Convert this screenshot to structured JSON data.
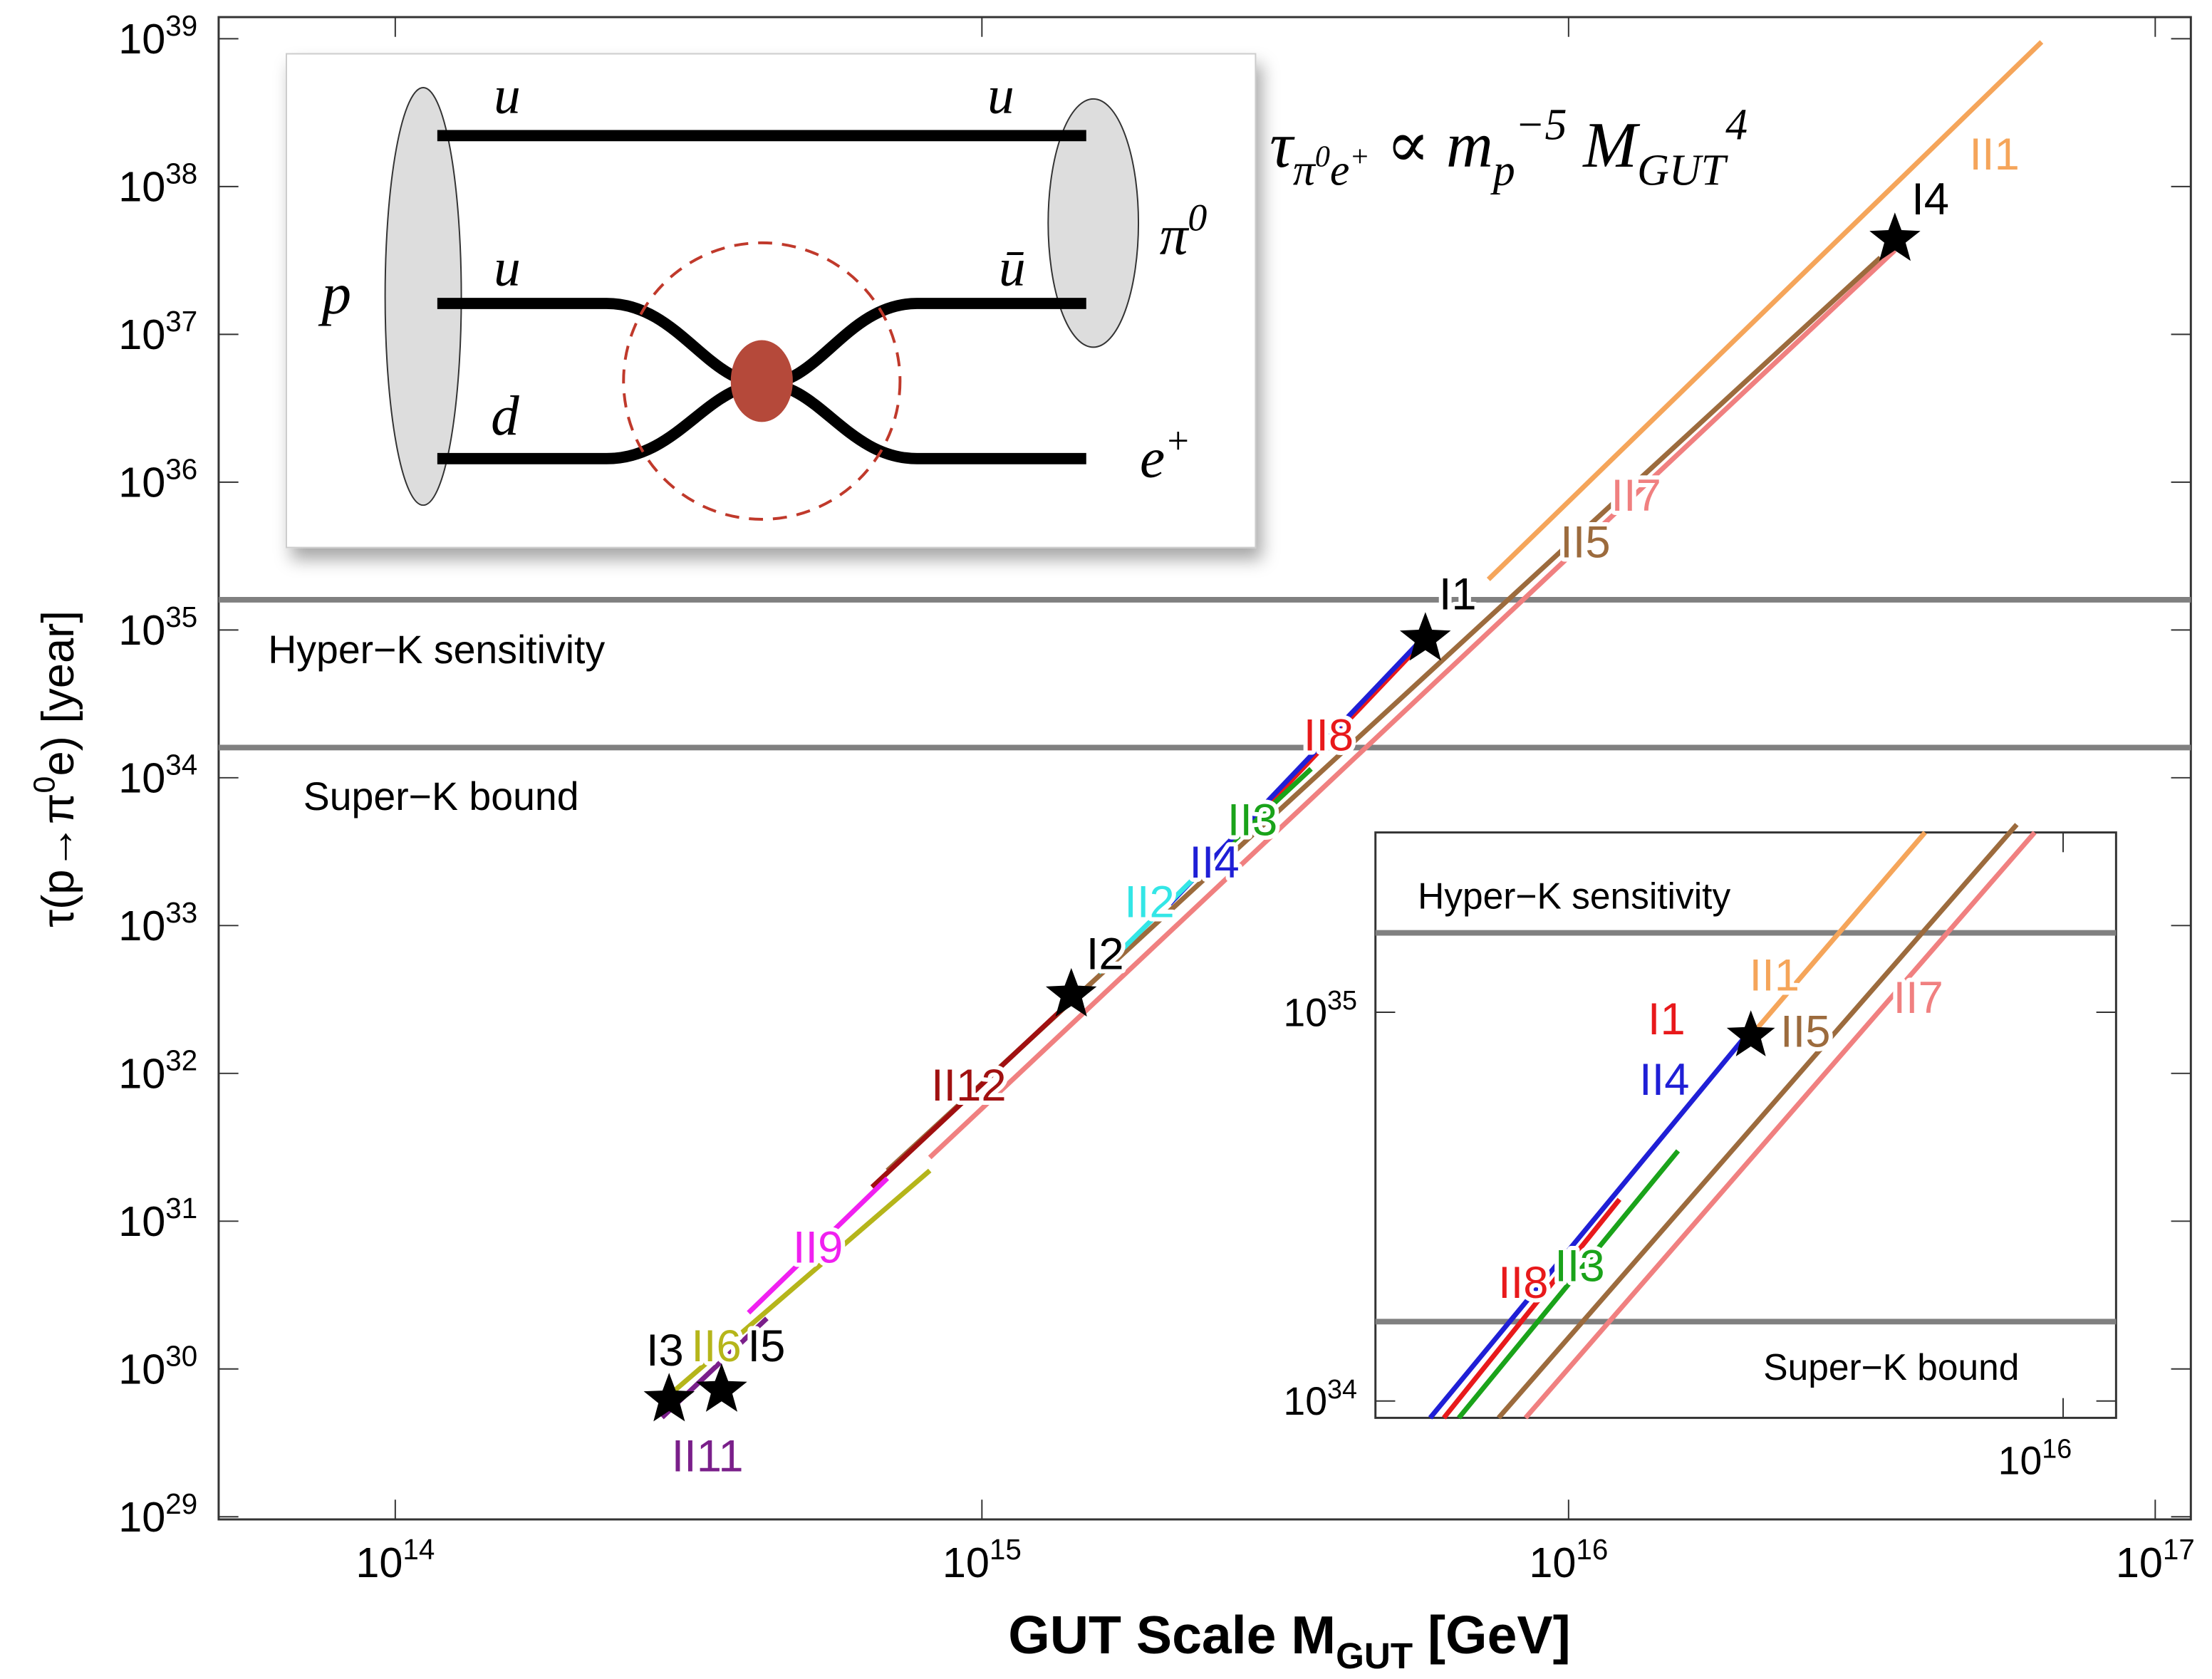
{
  "chart_data": [
    {
      "type": "line",
      "x_label": "GUT Scale M_{GUT} [GeV]",
      "y_label": "τ(p→π^0e) [year]",
      "log_x": true,
      "log_y": true,
      "xlim": [
        50000000000000.0,
        1.15e+17
      ],
      "ylim": [
        9.6e+28,
        1.4e+39
      ],
      "xticks": [
        {
          "value": 100000000000000.0,
          "label": "10^{14}"
        },
        {
          "value": 1000000000000000.0,
          "label": "10^{15}"
        },
        {
          "value": 1e+16,
          "label": "10^{16}"
        },
        {
          "value": 1e+17,
          "label": "10^{17}"
        }
      ],
      "yticks": [
        {
          "value": 1e+29,
          "label": "10^{29}"
        },
        {
          "value": 1e+30,
          "label": "10^{30}"
        },
        {
          "value": 1e+31,
          "label": "10^{31}"
        },
        {
          "value": 1e+32,
          "label": "10^{32}"
        },
        {
          "value": 1e+33,
          "label": "10^{33}"
        },
        {
          "value": 1e+34,
          "label": "10^{34}"
        },
        {
          "value": 1e+35,
          "label": "10^{35}"
        },
        {
          "value": 1e+36,
          "label": "10^{36}"
        },
        {
          "value": 1e+37,
          "label": "10^{37}"
        },
        {
          "value": 1e+38,
          "label": "10^{38}"
        },
        {
          "value": 1e+39,
          "label": "10^{39}"
        }
      ],
      "hlines": [
        {
          "value": 1.6e+35,
          "label": "Hyper−K sensitivity",
          "color": "#808080"
        },
        {
          "value": 1.6e+34,
          "label": "Super−K bound",
          "color": "#808080"
        }
      ],
      "series": [
        {
          "name": "II1",
          "color": "#f5a55a",
          "x": [
            7300000000000000.0,
            6.4e+16
          ],
          "y": [
            2.2e+35,
            9.5e+38
          ]
        },
        {
          "name": "II7",
          "color": "#f08080",
          "x": [
            815000000000000.0,
            3.6e+16
          ],
          "y": [
            2.7e+31,
            3.7e+37
          ]
        },
        {
          "name": "II5",
          "color": "#9c6b3d",
          "x": [
            690000000000000.0,
            3.4e+16
          ],
          "y": [
            2.2e+31,
            3.3e+37
          ]
        },
        {
          "name": "II8",
          "color": "#e8191b",
          "x": [
            3080000000000000.0,
            5650000000000000.0
          ],
          "y": [
            6.6e+33,
            8.3e+34
          ]
        },
        {
          "name": "II3",
          "color": "#1aa31a",
          "x": [
            2330000000000000.0,
            3640000000000000.0
          ],
          "y": [
            2.2e+33,
            1.15e+34
          ]
        },
        {
          "name": "II4",
          "color": "#1f1fd6",
          "x": [
            2090000000000000.0,
            5600000000000000.0
          ],
          "y": [
            1.4e+33,
            8.5e+34
          ]
        },
        {
          "name": "II2",
          "color": "#33e6e6",
          "x": [
            1580000000000000.0,
            2330000000000000.0
          ],
          "y": [
            4.8e+32,
            2.2e+33
          ]
        },
        {
          "name": "II12",
          "color": "#a01010",
          "x": [
            650000000000000.0,
            1500000000000000.0
          ],
          "y": [
            1.7e+31,
            3.8e+32
          ]
        },
        {
          "name": "II9",
          "color": "#f020f0",
          "x": [
            400000000000000.0,
            690000000000000.0
          ],
          "y": [
            2.4e+30,
            1.95e+31
          ]
        },
        {
          "name": "II6",
          "color": "#b5b51a",
          "x": [
            300000000000000.0,
            815000000000000.0
          ],
          "y": [
            7.2e+29,
            2.2e+31
          ]
        },
        {
          "name": "II11",
          "color": "#7a1f8a",
          "x": [
            285000000000000.0,
            430000000000000.0
          ],
          "y": [
            4.7e+29,
            2.2e+30
          ]
        }
      ],
      "points": {
        "color": "#000000",
        "labels": [
          "I1",
          "I2",
          "I3",
          "I4",
          "I5"
        ],
        "label_colors": [
          "#000000",
          "#000000",
          "#000000",
          "#000000",
          "#000000"
        ],
        "x": [
          5700000000000000.0,
          1420000000000000.0,
          293000000000000.0,
          3.6e+16,
          360000000000000.0
        ],
        "y": [
          8.7e+34,
          3.4e+32,
          6.2e+29,
          4.4e+37,
          7.2e+29
        ]
      },
      "formula": "τ_{π^0e^+} ∝ m_p^{−5} M_{GUT}^4",
      "diagram": {
        "labels": [
          "u",
          "u",
          "p",
          "π^0",
          "u",
          "ū",
          "d",
          "e^+"
        ]
      }
    },
    {
      "type": "line",
      "log_x": true,
      "log_y": true,
      "xlim": [
        2900000000000000.0,
        1.1e+16
      ],
      "ylim": [
        9.05e+33,
        2.9e+35
      ],
      "xticks": [
        {
          "value": 1e+16,
          "label": "10^{16}"
        }
      ],
      "yticks": [
        {
          "value": 1e+34,
          "label": "10^{34}"
        },
        {
          "value": 1e+35,
          "label": "10^{35}"
        }
      ],
      "hlines": [
        {
          "value": 1.6e+35,
          "label": "Hyper−K sensitivity",
          "color": "#808080"
        },
        {
          "value": 1.6e+34,
          "label": "Super−K bound",
          "color": "#808080"
        }
      ],
      "series": [
        {
          "name": "II4",
          "color": "#1f1fd6",
          "x": [
            3200000000000000.0,
            5650000000000000.0
          ],
          "y": [
            9.05e+33,
            8.7e+34
          ]
        },
        {
          "name": "II8",
          "color": "#e8191b",
          "x": [
            3280000000000000.0,
            4500000000000000.0
          ],
          "y": [
            9.05e+33,
            3.3e+34
          ]
        },
        {
          "name": "II3",
          "color": "#1aa31a",
          "x": [
            3370000000000000.0,
            5000000000000000.0
          ],
          "y": [
            9.05e+33,
            4.4e+34
          ]
        },
        {
          "name": "II1",
          "color": "#f5a55a",
          "x": [
            5700000000000000.0,
            7800000000000000.0
          ],
          "y": [
            8.7e+34,
            2.9e+35
          ]
        },
        {
          "name": "II5",
          "color": "#9c6b3d",
          "x": [
            3620000000000000.0,
            9200000000000000.0
          ],
          "y": [
            9.05e+33,
            3.04e+35
          ]
        },
        {
          "name": "II7",
          "color": "#f08080",
          "x": [
            3800000000000000.0,
            9500000000000000.0
          ],
          "y": [
            9.05e+33,
            2.9e+35
          ]
        }
      ],
      "points": {
        "color": "#000000",
        "labels": [
          "I1"
        ],
        "label_colors": [
          "#e8191b"
        ],
        "x": [
          5700000000000000.0
        ],
        "y": [
          8.7e+34
        ]
      }
    }
  ]
}
